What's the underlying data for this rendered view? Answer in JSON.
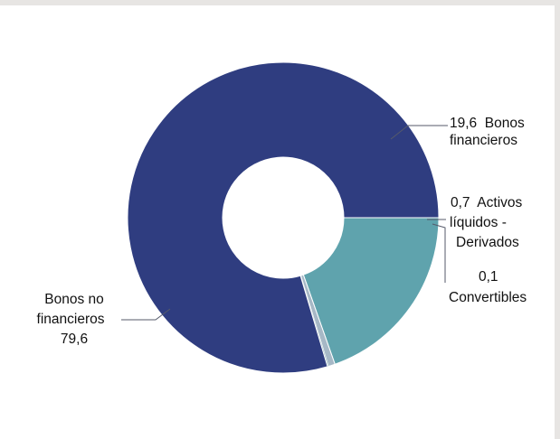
{
  "chart_data": {
    "type": "pie",
    "donut": true,
    "start_angle_deg": 90,
    "direction": "clockwise",
    "slices": [
      {
        "name": "Bonos financieros",
        "value": 19.6,
        "color": "#5fa3ad",
        "label_lines": [
          "19,6  Bonos",
          "financieros"
        ]
      },
      {
        "name": "Activos líquidos - Derivados",
        "value": 0.7,
        "color": "#a6b8c6",
        "label_lines": [
          "0,7  Activos",
          "líquidos -",
          "Derivados"
        ]
      },
      {
        "name": "Convertibles",
        "value": 0.1,
        "color": "#6f9fa8",
        "label_lines": [
          "0,1",
          "Convertibles"
        ]
      },
      {
        "name": "Bonos no financieros",
        "value": 79.6,
        "color": "#2f3d80",
        "label_lines": [
          "Bonos no",
          "financieros",
          "79,6"
        ]
      }
    ],
    "title": "",
    "legend": "none"
  }
}
